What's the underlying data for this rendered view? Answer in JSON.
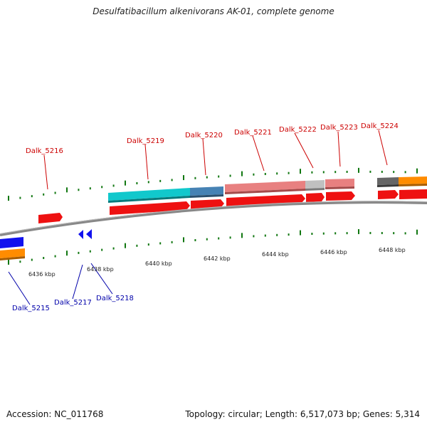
{
  "header": {
    "title": "Desulfatibacillum alkenivorans AK-01, complete genome"
  },
  "footer": {
    "accession": "Accession: NC_011768",
    "topology": "Topology: circular; Length: 6,517,073 bp; Genes: 5,314"
  },
  "colors": {
    "gene_red": "#ee1111",
    "gene_cyan": "#11c8cc",
    "gene_steelblue": "#4682b4",
    "gene_pink": "#e88080",
    "gene_grey": "#c0c0c0",
    "gene_darkgrey": "#666666",
    "gene_orange": "#ff8c00",
    "gene_blue": "#1111ee",
    "tick_green": "#117711",
    "backbone": "#888888",
    "label_top": "#cc0000",
    "label_bottom": "#0000aa"
  },
  "map": {
    "kbp_labels": [
      "6436 kbp",
      "6438 kbp",
      "6440 kbp",
      "6442 kbp",
      "6444 kbp",
      "6446 kbp",
      "6448 kbp"
    ],
    "top_gene_labels": [
      "Dalk_5216",
      "Dalk_5219",
      "Dalk_5220",
      "Dalk_5221",
      "Dalk_5222",
      "Dalk_5223",
      "Dalk_5224"
    ],
    "bottom_gene_labels": [
      "Dalk_5215",
      "Dalk_5217",
      "Dalk_5218"
    ]
  }
}
